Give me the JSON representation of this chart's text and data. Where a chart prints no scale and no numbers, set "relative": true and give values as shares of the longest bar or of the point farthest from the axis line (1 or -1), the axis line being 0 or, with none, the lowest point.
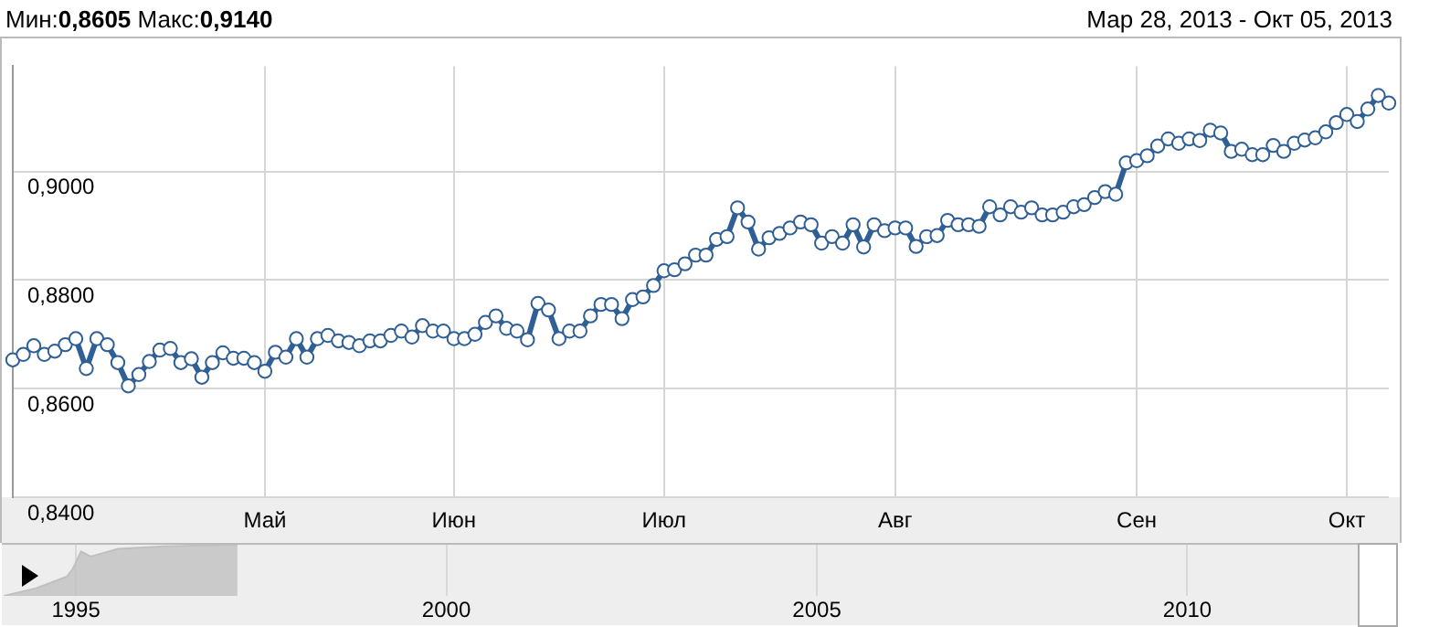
{
  "chart_data": [
    {
      "type": "line",
      "title": "Мин:0,8605 Макс:0,9140",
      "subtitle": "Мар 28, 2013 - Окт 05, 2013",
      "categories": [
        null,
        null,
        null,
        null,
        null,
        null,
        null,
        null,
        null,
        null,
        null,
        null,
        null,
        null,
        null,
        null,
        null,
        null,
        null,
        null,
        null,
        null,
        null,
        null,
        "Май",
        null,
        null,
        null,
        null,
        null,
        null,
        null,
        null,
        null,
        null,
        null,
        null,
        null,
        null,
        null,
        null,
        null,
        "Июн",
        null,
        null,
        null,
        null,
        null,
        null,
        null,
        null,
        null,
        null,
        null,
        null,
        null,
        null,
        null,
        null,
        null,
        null,
        null,
        "Июл",
        null,
        null,
        null,
        null,
        null,
        null,
        null,
        null,
        null,
        null,
        null,
        null,
        null,
        null,
        null,
        null,
        null,
        null,
        null,
        null,
        null,
        "Авг",
        null,
        null,
        null,
        null,
        null,
        null,
        null,
        null,
        null,
        null,
        null,
        null,
        null,
        null,
        null,
        null,
        null,
        null,
        null,
        null,
        null,
        null,
        "Сен",
        null,
        null,
        null,
        null,
        null,
        null,
        null,
        null,
        null,
        null,
        null,
        null,
        null,
        null,
        null,
        null,
        null,
        null,
        null,
        "Окт",
        null,
        null,
        null,
        null
      ],
      "series": [
        {
          "color": "#2f5f95",
          "values": [
            0.8653,
            0.8663,
            0.8679,
            0.8663,
            0.8669,
            0.8681,
            0.8692,
            0.8637,
            0.8692,
            0.8681,
            0.8648,
            0.8605,
            0.8626,
            0.865,
            0.8671,
            0.8674,
            0.8648,
            0.8655,
            0.8621,
            0.8648,
            0.8666,
            0.8656,
            0.8656,
            0.8648,
            0.8632,
            0.8667,
            0.8658,
            0.8692,
            0.8658,
            0.8692,
            0.8698,
            0.8688,
            0.8685,
            0.8679,
            0.8688,
            0.8688,
            0.8698,
            0.8706,
            0.8695,
            0.8716,
            0.8706,
            0.8706,
            0.8692,
            0.8692,
            0.87,
            0.8722,
            0.8734,
            0.8711,
            0.8706,
            0.869,
            0.8757,
            0.8745,
            0.8692,
            0.8706,
            0.8706,
            0.8734,
            0.8755,
            0.8755,
            0.8729,
            0.8764,
            0.8769,
            0.879,
            0.8817,
            0.8819,
            0.883,
            0.8846,
            0.8846,
            0.8875,
            0.888,
            0.8933,
            0.8907,
            0.8857,
            0.8878,
            0.8886,
            0.8896,
            0.8907,
            0.8902,
            0.8868,
            0.888,
            0.8868,
            0.8902,
            0.8861,
            0.8902,
            0.8891,
            0.8896,
            0.8896,
            0.8862,
            0.888,
            0.8882,
            0.891,
            0.8902,
            0.8902,
            0.8899,
            0.8935,
            0.892,
            0.8935,
            0.8925,
            0.8933,
            0.892,
            0.892,
            0.8925,
            0.8935,
            0.8939,
            0.8952,
            0.8963,
            0.8958,
            0.9016,
            0.902,
            0.9029,
            0.9047,
            0.906,
            0.9052,
            0.906,
            0.9057,
            0.9076,
            0.9071,
            0.9037,
            0.9041,
            0.9031,
            0.9031,
            0.9048,
            0.9037,
            0.9052,
            0.9058,
            0.9062,
            0.9073,
            0.909,
            0.9105,
            0.9092,
            0.9115,
            0.914,
            0.9126
          ]
        }
      ],
      "ylim": [
        0.84,
        0.9194
      ],
      "yticks": [
        {
          "value": 0.84,
          "label": "0,8400"
        },
        {
          "value": 0.86,
          "label": "0,8600"
        },
        {
          "value": 0.88,
          "label": "0,8800"
        },
        {
          "value": 0.9,
          "label": "0,9000"
        }
      ],
      "grid": true,
      "legend": false,
      "marker": "circle",
      "line_style": "solid"
    },
    {
      "type": "area",
      "x": [
        1994.03,
        1994.46,
        1994.88,
        1994.95,
        1995.07,
        1995.2,
        1995.57,
        1996.19,
        1997.18
      ],
      "values": [
        0,
        0.15,
        0.38,
        0.51,
        0.87,
        0.77,
        0.92,
        0.97,
        1
      ],
      "relative": true,
      "color": "#c0c0c0",
      "xlim": [
        1994,
        2012.3
      ],
      "xticks": [
        1995,
        2000,
        2005,
        2010
      ],
      "grid": "x",
      "legend": false
    }
  ]
}
